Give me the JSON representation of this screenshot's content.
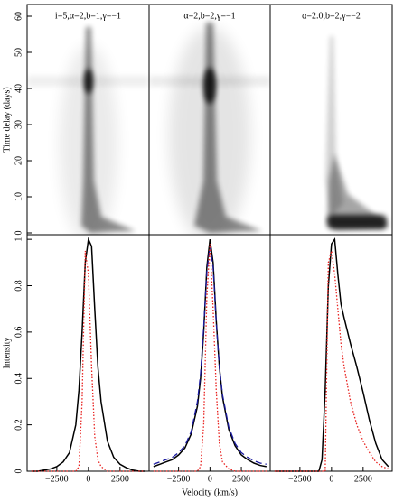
{
  "chart_data": [
    {
      "type": "image",
      "title": "i=5,α=2,b=1,γ=−1",
      "ylabel": "Time delay (days)",
      "xlim": [
        -4850,
        4800
      ],
      "ylim": [
        -0.5,
        63.25
      ],
      "yticks": [
        0,
        10,
        20,
        30,
        40,
        50,
        60
      ]
    },
    {
      "type": "image",
      "title": "α=2,b=2,γ=−1",
      "xlim": [
        -4850,
        4800
      ],
      "ylim": [
        -0.5,
        63.25
      ]
    },
    {
      "type": "image",
      "title": "α=2.0,b=2,γ=−2",
      "xlim": [
        -4850,
        4800
      ],
      "ylim": [
        -0.5,
        63.25
      ]
    },
    {
      "type": "line",
      "ylabel": "Intensity",
      "xlim": [
        -4850,
        4800
      ],
      "ylim": [
        0,
        1.02
      ],
      "yticks": [
        0,
        0.2,
        0.4,
        0.6,
        0.8,
        1
      ],
      "xticks": [
        {
          "value": -2500,
          "label": "−2500"
        },
        0,
        2500
      ],
      "x": [
        -4500,
        -4000,
        -3500,
        -3000,
        -2500,
        -2000,
        -1500,
        -1000,
        -750,
        -500,
        -250,
        0,
        250,
        500,
        750,
        1000,
        1500,
        2000,
        2500,
        3000,
        3500,
        4000,
        4500
      ],
      "series": [
        {
          "color": "#000000",
          "style": "solid",
          "values": [
            0,
            0,
            0.005,
            0.01,
            0.02,
            0.04,
            0.08,
            0.2,
            0.35,
            0.6,
            0.9,
            1.0,
            0.97,
            0.7,
            0.45,
            0.3,
            0.13,
            0.06,
            0.03,
            0.015,
            0.005,
            0,
            0
          ]
        },
        {
          "color": "#e8201e",
          "style": "dotted",
          "values": [
            0,
            0,
            0,
            0,
            0,
            0,
            0,
            0,
            0.02,
            0.3,
            0.95,
            0.85,
            0.45,
            0.15,
            0.05,
            0.02,
            0,
            0,
            0,
            0,
            0,
            0,
            0
          ]
        }
      ]
    },
    {
      "type": "line",
      "xlabel": "Velocity (km/s)",
      "xlim": [
        -4850,
        4800
      ],
      "ylim": [
        0,
        1.02
      ],
      "xticks": [
        {
          "value": -2500,
          "label": "−2500"
        },
        0,
        2500
      ],
      "x": [
        -4500,
        -4000,
        -3500,
        -3000,
        -2500,
        -2000,
        -1500,
        -1000,
        -750,
        -500,
        -250,
        0,
        250,
        500,
        750,
        1000,
        1500,
        2000,
        2500,
        3000,
        3500,
        4000,
        4500
      ],
      "series": [
        {
          "color": "#000000",
          "style": "solid",
          "values": [
            0.02,
            0.03,
            0.04,
            0.05,
            0.07,
            0.1,
            0.16,
            0.28,
            0.4,
            0.6,
            0.88,
            1.0,
            0.9,
            0.65,
            0.45,
            0.32,
            0.18,
            0.11,
            0.07,
            0.05,
            0.035,
            0.025,
            0.02
          ]
        },
        {
          "color": "#1a1aa0",
          "style": "dashed",
          "values": [
            0.03,
            0.04,
            0.05,
            0.06,
            0.08,
            0.11,
            0.17,
            0.3,
            0.42,
            0.62,
            0.86,
            0.97,
            0.88,
            0.64,
            0.45,
            0.33,
            0.19,
            0.12,
            0.08,
            0.06,
            0.045,
            0.035,
            0.03
          ]
        },
        {
          "color": "#e8201e",
          "style": "dotted",
          "values": [
            0,
            0,
            0,
            0,
            0,
            0,
            0,
            0,
            0.02,
            0.2,
            0.75,
            0.98,
            0.7,
            0.35,
            0.12,
            0.04,
            0.01,
            0,
            0,
            0,
            0,
            0,
            0
          ]
        }
      ]
    },
    {
      "type": "line",
      "xlim": [
        -4850,
        4800
      ],
      "ylim": [
        0,
        1.02
      ],
      "xticks": [
        {
          "value": -2500,
          "label": "−2500"
        },
        0,
        2500
      ],
      "x": [
        -4500,
        -4000,
        -3500,
        -3000,
        -2500,
        -2000,
        -1500,
        -1000,
        -750,
        -500,
        -250,
        0,
        250,
        500,
        750,
        1000,
        1500,
        2000,
        2500,
        3000,
        3500,
        4000,
        4500
      ],
      "series": [
        {
          "color": "#000000",
          "style": "solid",
          "values": [
            0,
            0,
            0,
            0,
            0,
            0,
            0,
            0,
            0.05,
            0.35,
            0.8,
            0.98,
            1.0,
            0.85,
            0.72,
            0.66,
            0.55,
            0.45,
            0.34,
            0.22,
            0.12,
            0.05,
            0.02
          ]
        },
        {
          "color": "#e8201e",
          "style": "dotted",
          "values": [
            0,
            0,
            0,
            0,
            0,
            0,
            0,
            0,
            0,
            0,
            0.9,
            0.95,
            0.85,
            0.7,
            0.55,
            0.45,
            0.3,
            0.2,
            0.13,
            0.08,
            0.04,
            0.02,
            0.01
          ]
        }
      ]
    }
  ]
}
